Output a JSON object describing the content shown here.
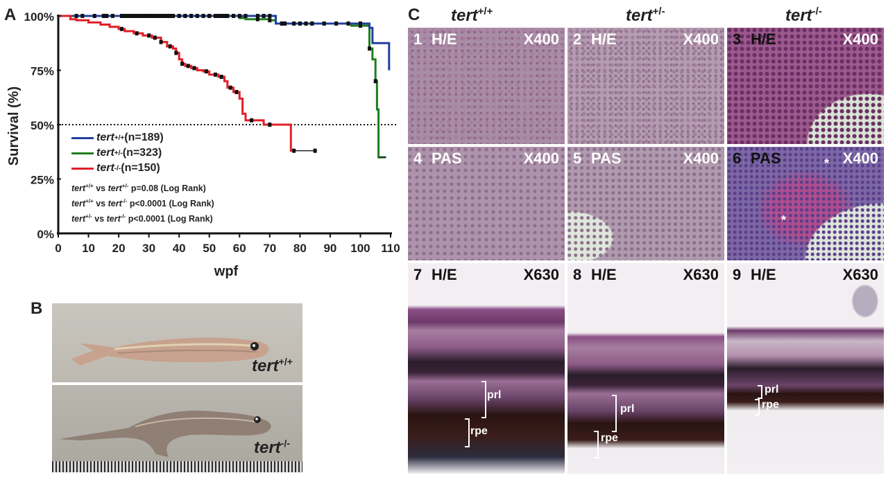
{
  "panels": {
    "a": "A",
    "b": "B",
    "c": "C"
  },
  "chart_data": {
    "type": "line",
    "xlabel": "wpf",
    "ylabel": "Survival (%)",
    "xlim": [
      0,
      110
    ],
    "ylim": [
      0,
      100
    ],
    "x_ticks": [
      "0",
      "10",
      "20",
      "30",
      "40",
      "50",
      "60",
      "70",
      "80",
      "90",
      "100",
      "110"
    ],
    "y_ticks": [
      "0%",
      "25%",
      "50%",
      "75%",
      "100%"
    ],
    "reference_line_y": 50,
    "series": [
      {
        "name": "tert+/+",
        "color": "#1f3f9e",
        "x": [
          0,
          70,
          72,
          95,
          103,
          104,
          108,
          109.5,
          109.5
        ],
        "y": [
          100,
          100,
          96.5,
          96.5,
          94.5,
          87.5,
          87.5,
          87.5,
          75
        ]
      },
      {
        "name": "tert+/-",
        "color": "#1d7f1d",
        "x": [
          0,
          60,
          62,
          70,
          72,
          95,
          97,
          103,
          104,
          105,
          105.5,
          106,
          106,
          108.5
        ],
        "y": [
          100,
          99,
          98.5,
          98,
          96.5,
          96.5,
          95.5,
          85,
          80,
          70,
          57,
          48,
          35,
          35
        ]
      },
      {
        "name": "tert-/-",
        "color": "#e21e26",
        "x": [
          0,
          4,
          6,
          10,
          14,
          17,
          20,
          22,
          25,
          28,
          31,
          34,
          36,
          38,
          39,
          40,
          41,
          42,
          44,
          46,
          48,
          50,
          53,
          55,
          56,
          58,
          60,
          61,
          62,
          65,
          68,
          70,
          72,
          75,
          77,
          77,
          78
        ],
        "y": [
          100,
          98.5,
          98,
          97,
          96,
          95,
          94,
          93,
          92,
          91,
          90,
          88,
          86,
          85,
          83,
          80,
          78,
          77,
          76,
          75,
          74.5,
          73,
          72,
          70,
          67,
          65,
          62,
          55,
          52,
          52,
          50,
          50,
          50,
          50,
          50,
          38,
          38
        ]
      }
    ],
    "censor_marks": {
      "tert+/+": [
        6,
        15,
        18,
        21,
        22,
        23,
        24,
        25,
        26,
        27,
        28,
        29,
        30,
        31,
        32,
        33,
        34,
        35,
        36,
        37,
        38,
        40,
        42,
        44,
        46,
        48,
        50,
        52,
        53,
        54,
        55,
        56,
        58,
        60,
        62,
        66,
        68,
        70,
        75,
        84,
        92,
        100
      ],
      "tert+/-": [
        8,
        12,
        16,
        22,
        28,
        35,
        42,
        50,
        58,
        66,
        70,
        74,
        78,
        80,
        82,
        84,
        88,
        96,
        100,
        103,
        105
      ],
      "tert-/-": [
        21,
        26,
        30,
        32,
        34,
        37,
        39,
        41,
        43,
        45,
        49,
        52,
        54,
        57,
        59,
        64,
        70,
        78,
        85
      ]
    },
    "end_tails": {
      "tert-/-": {
        "x": [
          78,
          85
        ],
        "y": 38,
        "color": "#222"
      },
      "tert+/-": {
        "x": [
          106,
          108.5
        ],
        "y": 35,
        "color": "#222"
      }
    }
  },
  "legend": [
    {
      "gene": "tert",
      "geno": "+/+",
      "n": "(n=189)",
      "color": "#1f3f9e"
    },
    {
      "gene": "tert",
      "geno": "+/-",
      "n": "(n=323)",
      "color": "#1d7f1d"
    },
    {
      "gene": "tert",
      "geno": "-/-",
      "n": "(n=150)",
      "color": "#e21e26"
    }
  ],
  "stats": [
    {
      "g1": "+/+",
      "g2": "+/-",
      "text": "p=0.08 (Log Rank)"
    },
    {
      "g1": "+/+",
      "g2": "-/-",
      "text": "p<0.0001 (Log Rank)"
    },
    {
      "g1": "+/-",
      "g2": "-/-",
      "text": "p<0.0001 (Log Rank)"
    }
  ],
  "stat_words": {
    "gene": "tert",
    "vs": "vs"
  },
  "fish_labels": [
    {
      "gene": "tert",
      "geno": "+/+"
    },
    {
      "gene": "tert",
      "geno": "-/-"
    }
  ],
  "col_heads": [
    {
      "gene": "tert",
      "geno": "+/+"
    },
    {
      "gene": "tert",
      "geno": "+/-"
    },
    {
      "gene": "tert",
      "geno": "-/-"
    }
  ],
  "tiles": [
    {
      "num": "1",
      "stain": "H/E",
      "mag": "X400"
    },
    {
      "num": "2",
      "stain": "H/E",
      "mag": "X400"
    },
    {
      "num": "3",
      "stain": "H/E",
      "mag": "X400"
    },
    {
      "num": "4",
      "stain": "PAS",
      "mag": "X400"
    },
    {
      "num": "5",
      "stain": "PAS",
      "mag": "X400"
    },
    {
      "num": "6",
      "stain": "PAS",
      "mag": "X400"
    },
    {
      "num": "7",
      "stain": "H/E",
      "mag": "X630"
    },
    {
      "num": "8",
      "stain": "H/E",
      "mag": "X630"
    },
    {
      "num": "9",
      "stain": "H/E",
      "mag": "X630"
    }
  ],
  "retina_labels": {
    "prl": "prl",
    "rpe": "rpe"
  },
  "asterisk": "*"
}
